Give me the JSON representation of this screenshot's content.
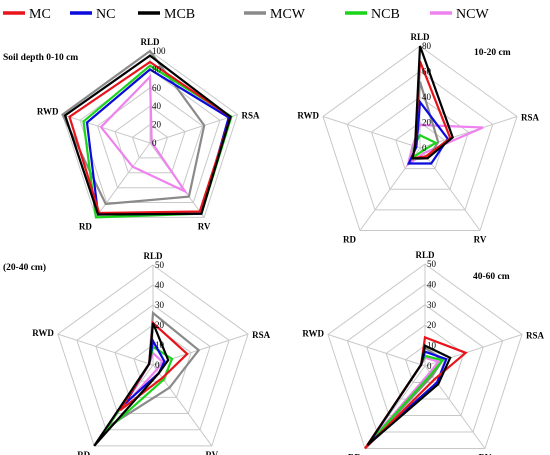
{
  "legend": [
    {
      "name": "MC",
      "color": "#e8131b"
    },
    {
      "name": "NC",
      "color": "#0a0adc"
    },
    {
      "name": "MCB",
      "color": "#000000"
    },
    {
      "name": "MCW",
      "color": "#8a8a8a"
    },
    {
      "name": "NCB",
      "color": "#19d419"
    },
    {
      "name": "NCW",
      "color": "#ee82ee"
    }
  ],
  "chart_data": [
    {
      "type": "radar",
      "title": "Soil depth 0-10 cm",
      "axes": [
        "RLD",
        "RSA",
        "RV",
        "RD",
        "RWD"
      ],
      "ticks": [
        "0",
        "20",
        "40",
        "60",
        "80",
        "100"
      ],
      "rmax": 100,
      "series": [
        {
          "name": "MC",
          "values": [
            88,
            92,
            92,
            94,
            92
          ]
        },
        {
          "name": "NC",
          "values": [
            80,
            90,
            95,
            96,
            72
          ]
        },
        {
          "name": "MCB",
          "values": [
            95,
            92,
            95,
            96,
            97
          ]
        },
        {
          "name": "MCW",
          "values": [
            100,
            62,
            72,
            82,
            100
          ]
        },
        {
          "name": "NCB",
          "values": [
            84,
            93,
            95,
            100,
            76
          ]
        },
        {
          "name": "NCW",
          "values": [
            72,
            2,
            65,
            32,
            56
          ]
        }
      ]
    },
    {
      "type": "radar",
      "title": "10-20 cm",
      "axes": [
        "RLD",
        "RSA",
        "RV",
        "RD",
        "RWD"
      ],
      "ticks": [
        "0",
        "20",
        "40",
        "60",
        "80"
      ],
      "rmax": 80,
      "series": [
        {
          "name": "MC",
          "values": [
            68,
            25,
            8,
            10,
            4
          ]
        },
        {
          "name": "NC",
          "values": [
            36,
            23,
            15,
            15,
            3
          ]
        },
        {
          "name": "MCB",
          "values": [
            80,
            27,
            10,
            10,
            4
          ]
        },
        {
          "name": "MCW",
          "values": [
            52,
            15,
            10,
            11,
            4
          ]
        },
        {
          "name": "NCB",
          "values": [
            10,
            13,
            3,
            9,
            5
          ]
        },
        {
          "name": "NCW",
          "values": [
            18,
            52,
            5,
            16,
            6
          ]
        }
      ]
    },
    {
      "type": "radar",
      "title": "(20-40 cm)",
      "axes": [
        "RLD",
        "RSA",
        "RV",
        "RD",
        "RWD"
      ],
      "ticks": [
        "0",
        "10",
        "20",
        "30",
        "40",
        "50"
      ],
      "rmax": 50,
      "series": [
        {
          "name": "MC",
          "values": [
            21,
            18,
            8,
            28,
            2
          ]
        },
        {
          "name": "NC",
          "values": [
            12,
            6,
            5,
            24,
            2
          ]
        },
        {
          "name": "MCB",
          "values": [
            21,
            8,
            5,
            50,
            2
          ]
        },
        {
          "name": "MCW",
          "values": [
            26,
            24,
            14,
            38,
            2
          ]
        },
        {
          "name": "NCB",
          "values": [
            9,
            10,
            9,
            42,
            2
          ]
        },
        {
          "name": "NCW",
          "values": [
            6,
            5,
            3,
            28,
            2
          ]
        }
      ]
    },
    {
      "type": "radar",
      "title": "40-60 cm",
      "axes": [
        "RLD",
        "RSA",
        "RV",
        "RD",
        "RWD"
      ],
      "ticks": [
        "0",
        "10",
        "20",
        "30",
        "40",
        "50"
      ],
      "rmax": 50,
      "series": [
        {
          "name": "MC",
          "values": [
            14,
            21,
            8,
            50,
            2
          ]
        },
        {
          "name": "NC",
          "values": [
            7,
            11,
            10,
            47,
            2
          ]
        },
        {
          "name": "MCB",
          "values": [
            10,
            13,
            11,
            48,
            2
          ]
        },
        {
          "name": "MCW",
          "values": [
            9,
            9,
            6,
            48,
            2
          ]
        },
        {
          "name": "NCB",
          "values": [
            5,
            9,
            5,
            47,
            2
          ]
        },
        {
          "name": "NCW",
          "values": [
            4,
            7,
            4,
            45,
            2
          ]
        }
      ]
    }
  ]
}
